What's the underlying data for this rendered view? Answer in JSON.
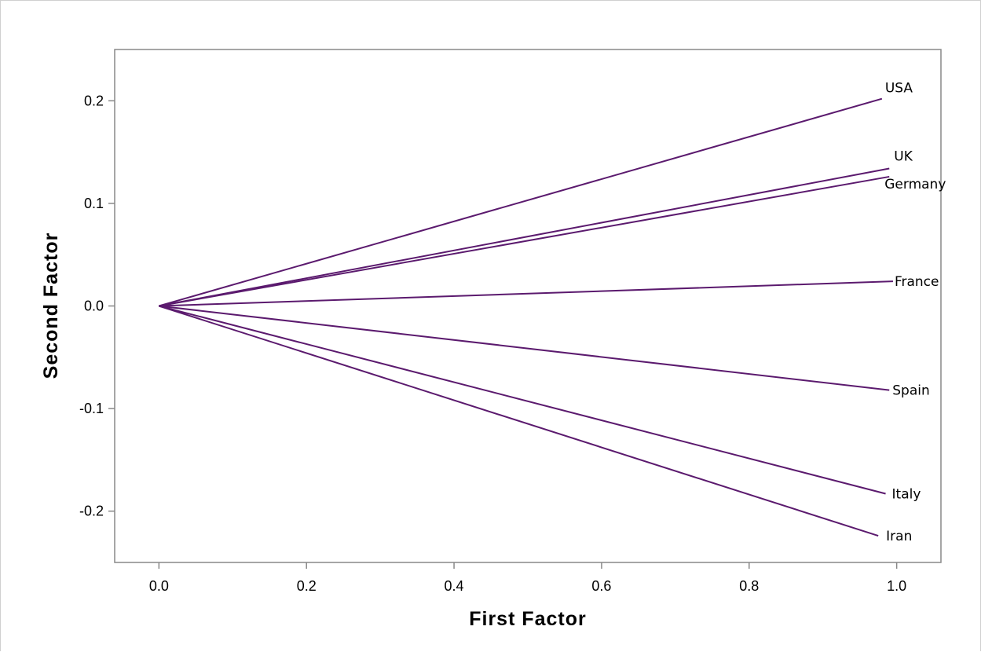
{
  "chart_data": {
    "type": "line",
    "title": "",
    "xlabel": "First Factor",
    "ylabel": "Second Factor",
    "xlim": [
      -0.06,
      1.06
    ],
    "ylim": [
      -0.25,
      0.25
    ],
    "x_ticks": [
      "0.0",
      "0.2",
      "0.4",
      "0.6",
      "0.8",
      "1.0"
    ],
    "x_tick_values": [
      0.0,
      0.2,
      0.4,
      0.6,
      0.8,
      1.0
    ],
    "y_ticks": [
      "0.2",
      "0.1",
      "0.0",
      "-0.1",
      "-0.2"
    ],
    "y_tick_values": [
      0.2,
      0.1,
      0.0,
      -0.1,
      -0.2
    ],
    "grid": false,
    "line_color": "#5b1a6e",
    "origin": [
      0,
      0
    ],
    "points": [
      {
        "label": "USA",
        "x": 0.98,
        "y": 0.202
      },
      {
        "label": "UK",
        "x": 0.99,
        "y": 0.134
      },
      {
        "label": "Germany",
        "x": 0.99,
        "y": 0.126
      },
      {
        "label": "France",
        "x": 0.995,
        "y": 0.024
      },
      {
        "label": "Spain",
        "x": 0.99,
        "y": -0.082
      },
      {
        "label": "Italy",
        "x": 0.985,
        "y": -0.183
      },
      {
        "label": "Iran",
        "x": 0.975,
        "y": -0.224
      }
    ]
  }
}
